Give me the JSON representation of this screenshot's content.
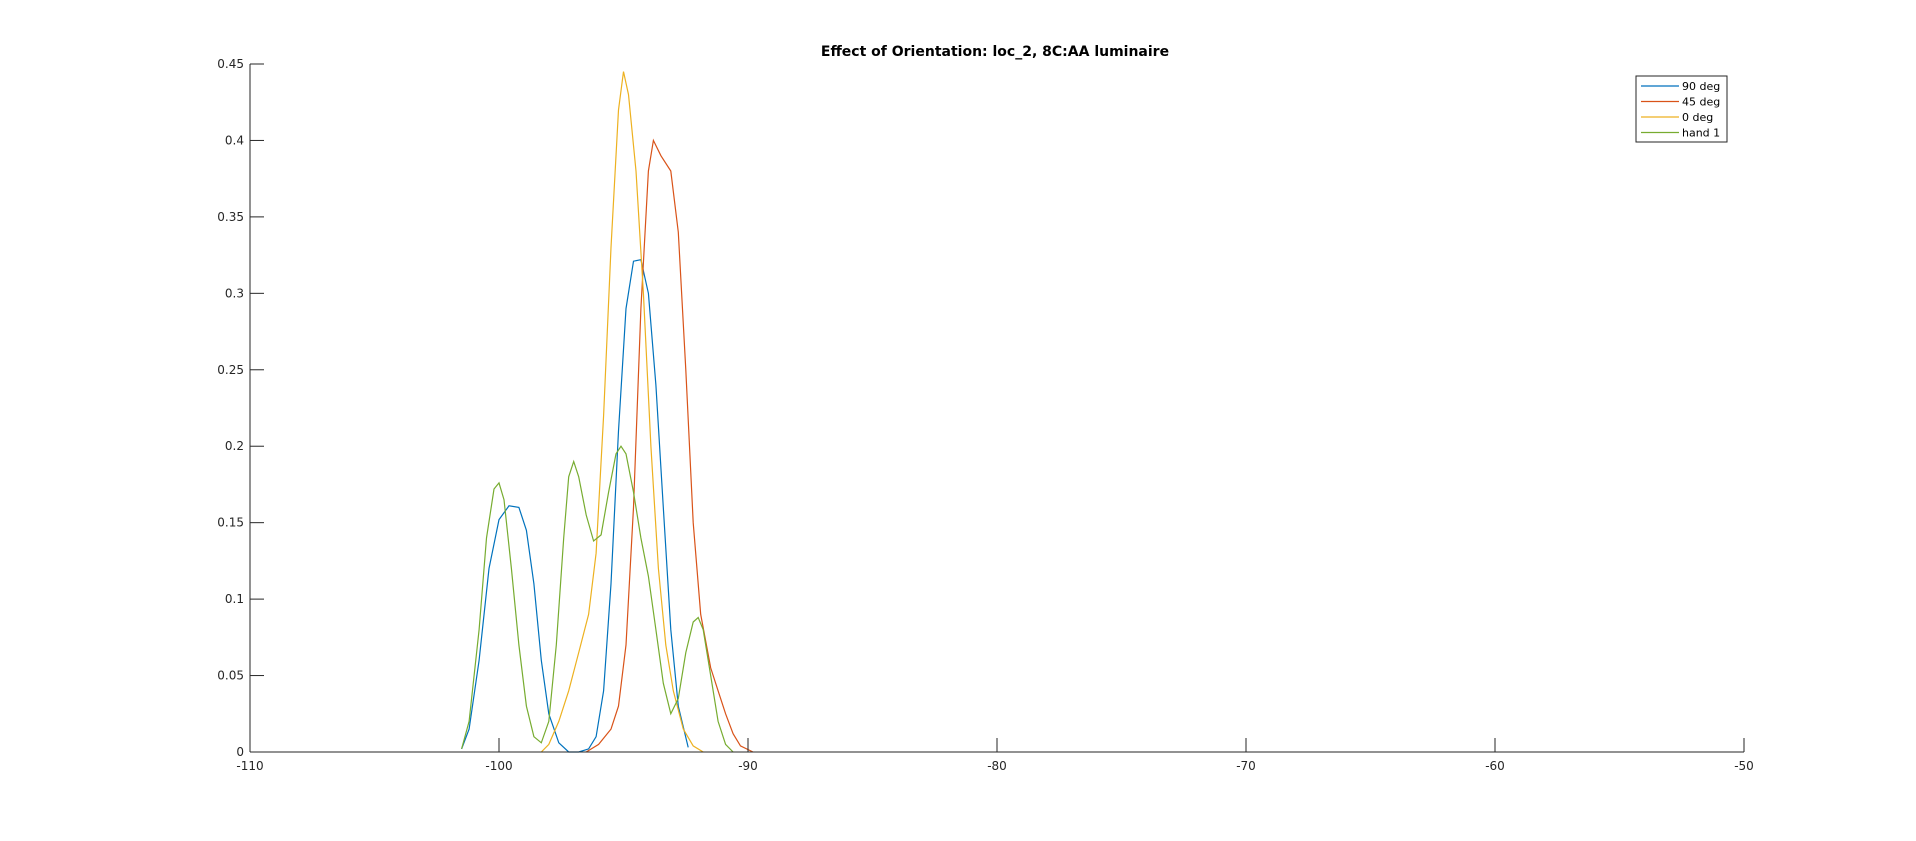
{
  "chart_data": {
    "type": "line",
    "title": "Effect of Orientation: loc_2, 8C:AA luminaire",
    "xlabel": "",
    "ylabel": "",
    "xlim": [
      -110,
      -50
    ],
    "ylim": [
      0,
      0.45
    ],
    "x_ticks": [
      -110,
      -100,
      -90,
      -80,
      -70,
      -60,
      -50
    ],
    "y_ticks": [
      0,
      0.05,
      0.1,
      0.15,
      0.2,
      0.25,
      0.3,
      0.35,
      0.4,
      0.45
    ],
    "x_tick_labels": [
      "-110",
      "-100",
      "-90",
      "-80",
      "-70",
      "-60",
      "-50"
    ],
    "y_tick_labels": [
      "0",
      "0.05",
      "0.1",
      "0.15",
      "0.2",
      "0.25",
      "0.3",
      "0.35",
      "0.4",
      "0.45"
    ],
    "grid": false,
    "legend_position": "top-right",
    "series": [
      {
        "name": "90 deg",
        "color": "#0072BD",
        "points": [
          [
            -101.5,
            0.002
          ],
          [
            -101.2,
            0.015
          ],
          [
            -100.8,
            0.06
          ],
          [
            -100.4,
            0.12
          ],
          [
            -100.0,
            0.152
          ],
          [
            -99.6,
            0.161
          ],
          [
            -99.2,
            0.16
          ],
          [
            -98.9,
            0.145
          ],
          [
            -98.6,
            0.11
          ],
          [
            -98.3,
            0.06
          ],
          [
            -98.0,
            0.025
          ],
          [
            -97.6,
            0.006
          ],
          [
            -97.2,
            0.0
          ],
          [
            -96.8,
            0.0
          ],
          [
            -96.4,
            0.002
          ],
          [
            -96.1,
            0.01
          ],
          [
            -95.8,
            0.04
          ],
          [
            -95.5,
            0.11
          ],
          [
            -95.2,
            0.21
          ],
          [
            -94.9,
            0.29
          ],
          [
            -94.6,
            0.321
          ],
          [
            -94.3,
            0.322
          ],
          [
            -94.0,
            0.3
          ],
          [
            -93.7,
            0.24
          ],
          [
            -93.4,
            0.16
          ],
          [
            -93.1,
            0.08
          ],
          [
            -92.8,
            0.03
          ],
          [
            -92.4,
            0.003
          ]
        ]
      },
      {
        "name": "45 deg",
        "color": "#D95319",
        "points": [
          [
            -96.5,
            0.0
          ],
          [
            -96.0,
            0.005
          ],
          [
            -95.5,
            0.015
          ],
          [
            -95.2,
            0.03
          ],
          [
            -94.9,
            0.07
          ],
          [
            -94.6,
            0.16
          ],
          [
            -94.3,
            0.29
          ],
          [
            -94.0,
            0.38
          ],
          [
            -93.8,
            0.4
          ],
          [
            -93.5,
            0.39
          ],
          [
            -93.1,
            0.38
          ],
          [
            -92.8,
            0.34
          ],
          [
            -92.5,
            0.25
          ],
          [
            -92.2,
            0.15
          ],
          [
            -91.9,
            0.09
          ],
          [
            -91.5,
            0.055
          ],
          [
            -91.2,
            0.04
          ],
          [
            -90.9,
            0.025
          ],
          [
            -90.6,
            0.012
          ],
          [
            -90.3,
            0.004
          ],
          [
            -89.8,
            0.0
          ]
        ]
      },
      {
        "name": "0 deg",
        "color": "#EDB120",
        "points": [
          [
            -98.3,
            0.0
          ],
          [
            -98.0,
            0.005
          ],
          [
            -97.6,
            0.02
          ],
          [
            -97.2,
            0.04
          ],
          [
            -96.8,
            0.065
          ],
          [
            -96.4,
            0.09
          ],
          [
            -96.1,
            0.13
          ],
          [
            -95.8,
            0.22
          ],
          [
            -95.5,
            0.33
          ],
          [
            -95.2,
            0.42
          ],
          [
            -95.0,
            0.445
          ],
          [
            -94.8,
            0.43
          ],
          [
            -94.5,
            0.38
          ],
          [
            -94.2,
            0.3
          ],
          [
            -93.9,
            0.2
          ],
          [
            -93.6,
            0.12
          ],
          [
            -93.3,
            0.07
          ],
          [
            -93.0,
            0.04
          ],
          [
            -92.6,
            0.015
          ],
          [
            -92.2,
            0.004
          ],
          [
            -91.8,
            0.0
          ]
        ]
      },
      {
        "name": "hand 1",
        "color": "#77AC30",
        "points": [
          [
            -101.5,
            0.002
          ],
          [
            -101.2,
            0.02
          ],
          [
            -100.8,
            0.08
          ],
          [
            -100.5,
            0.14
          ],
          [
            -100.2,
            0.172
          ],
          [
            -100.0,
            0.176
          ],
          [
            -99.8,
            0.165
          ],
          [
            -99.5,
            0.12
          ],
          [
            -99.2,
            0.07
          ],
          [
            -98.9,
            0.03
          ],
          [
            -98.6,
            0.01
          ],
          [
            -98.3,
            0.006
          ],
          [
            -98.0,
            0.02
          ],
          [
            -97.7,
            0.07
          ],
          [
            -97.4,
            0.14
          ],
          [
            -97.2,
            0.18
          ],
          [
            -97.0,
            0.19
          ],
          [
            -96.8,
            0.18
          ],
          [
            -96.5,
            0.155
          ],
          [
            -96.2,
            0.138
          ],
          [
            -95.9,
            0.142
          ],
          [
            -95.6,
            0.17
          ],
          [
            -95.3,
            0.195
          ],
          [
            -95.1,
            0.2
          ],
          [
            -94.9,
            0.195
          ],
          [
            -94.6,
            0.17
          ],
          [
            -94.3,
            0.14
          ],
          [
            -94.0,
            0.115
          ],
          [
            -93.7,
            0.08
          ],
          [
            -93.4,
            0.045
          ],
          [
            -93.1,
            0.025
          ],
          [
            -92.8,
            0.035
          ],
          [
            -92.5,
            0.065
          ],
          [
            -92.2,
            0.085
          ],
          [
            -92.0,
            0.088
          ],
          [
            -91.8,
            0.08
          ],
          [
            -91.5,
            0.05
          ],
          [
            -91.2,
            0.02
          ],
          [
            -90.9,
            0.005
          ],
          [
            -90.6,
            0.0
          ]
        ]
      }
    ]
  }
}
